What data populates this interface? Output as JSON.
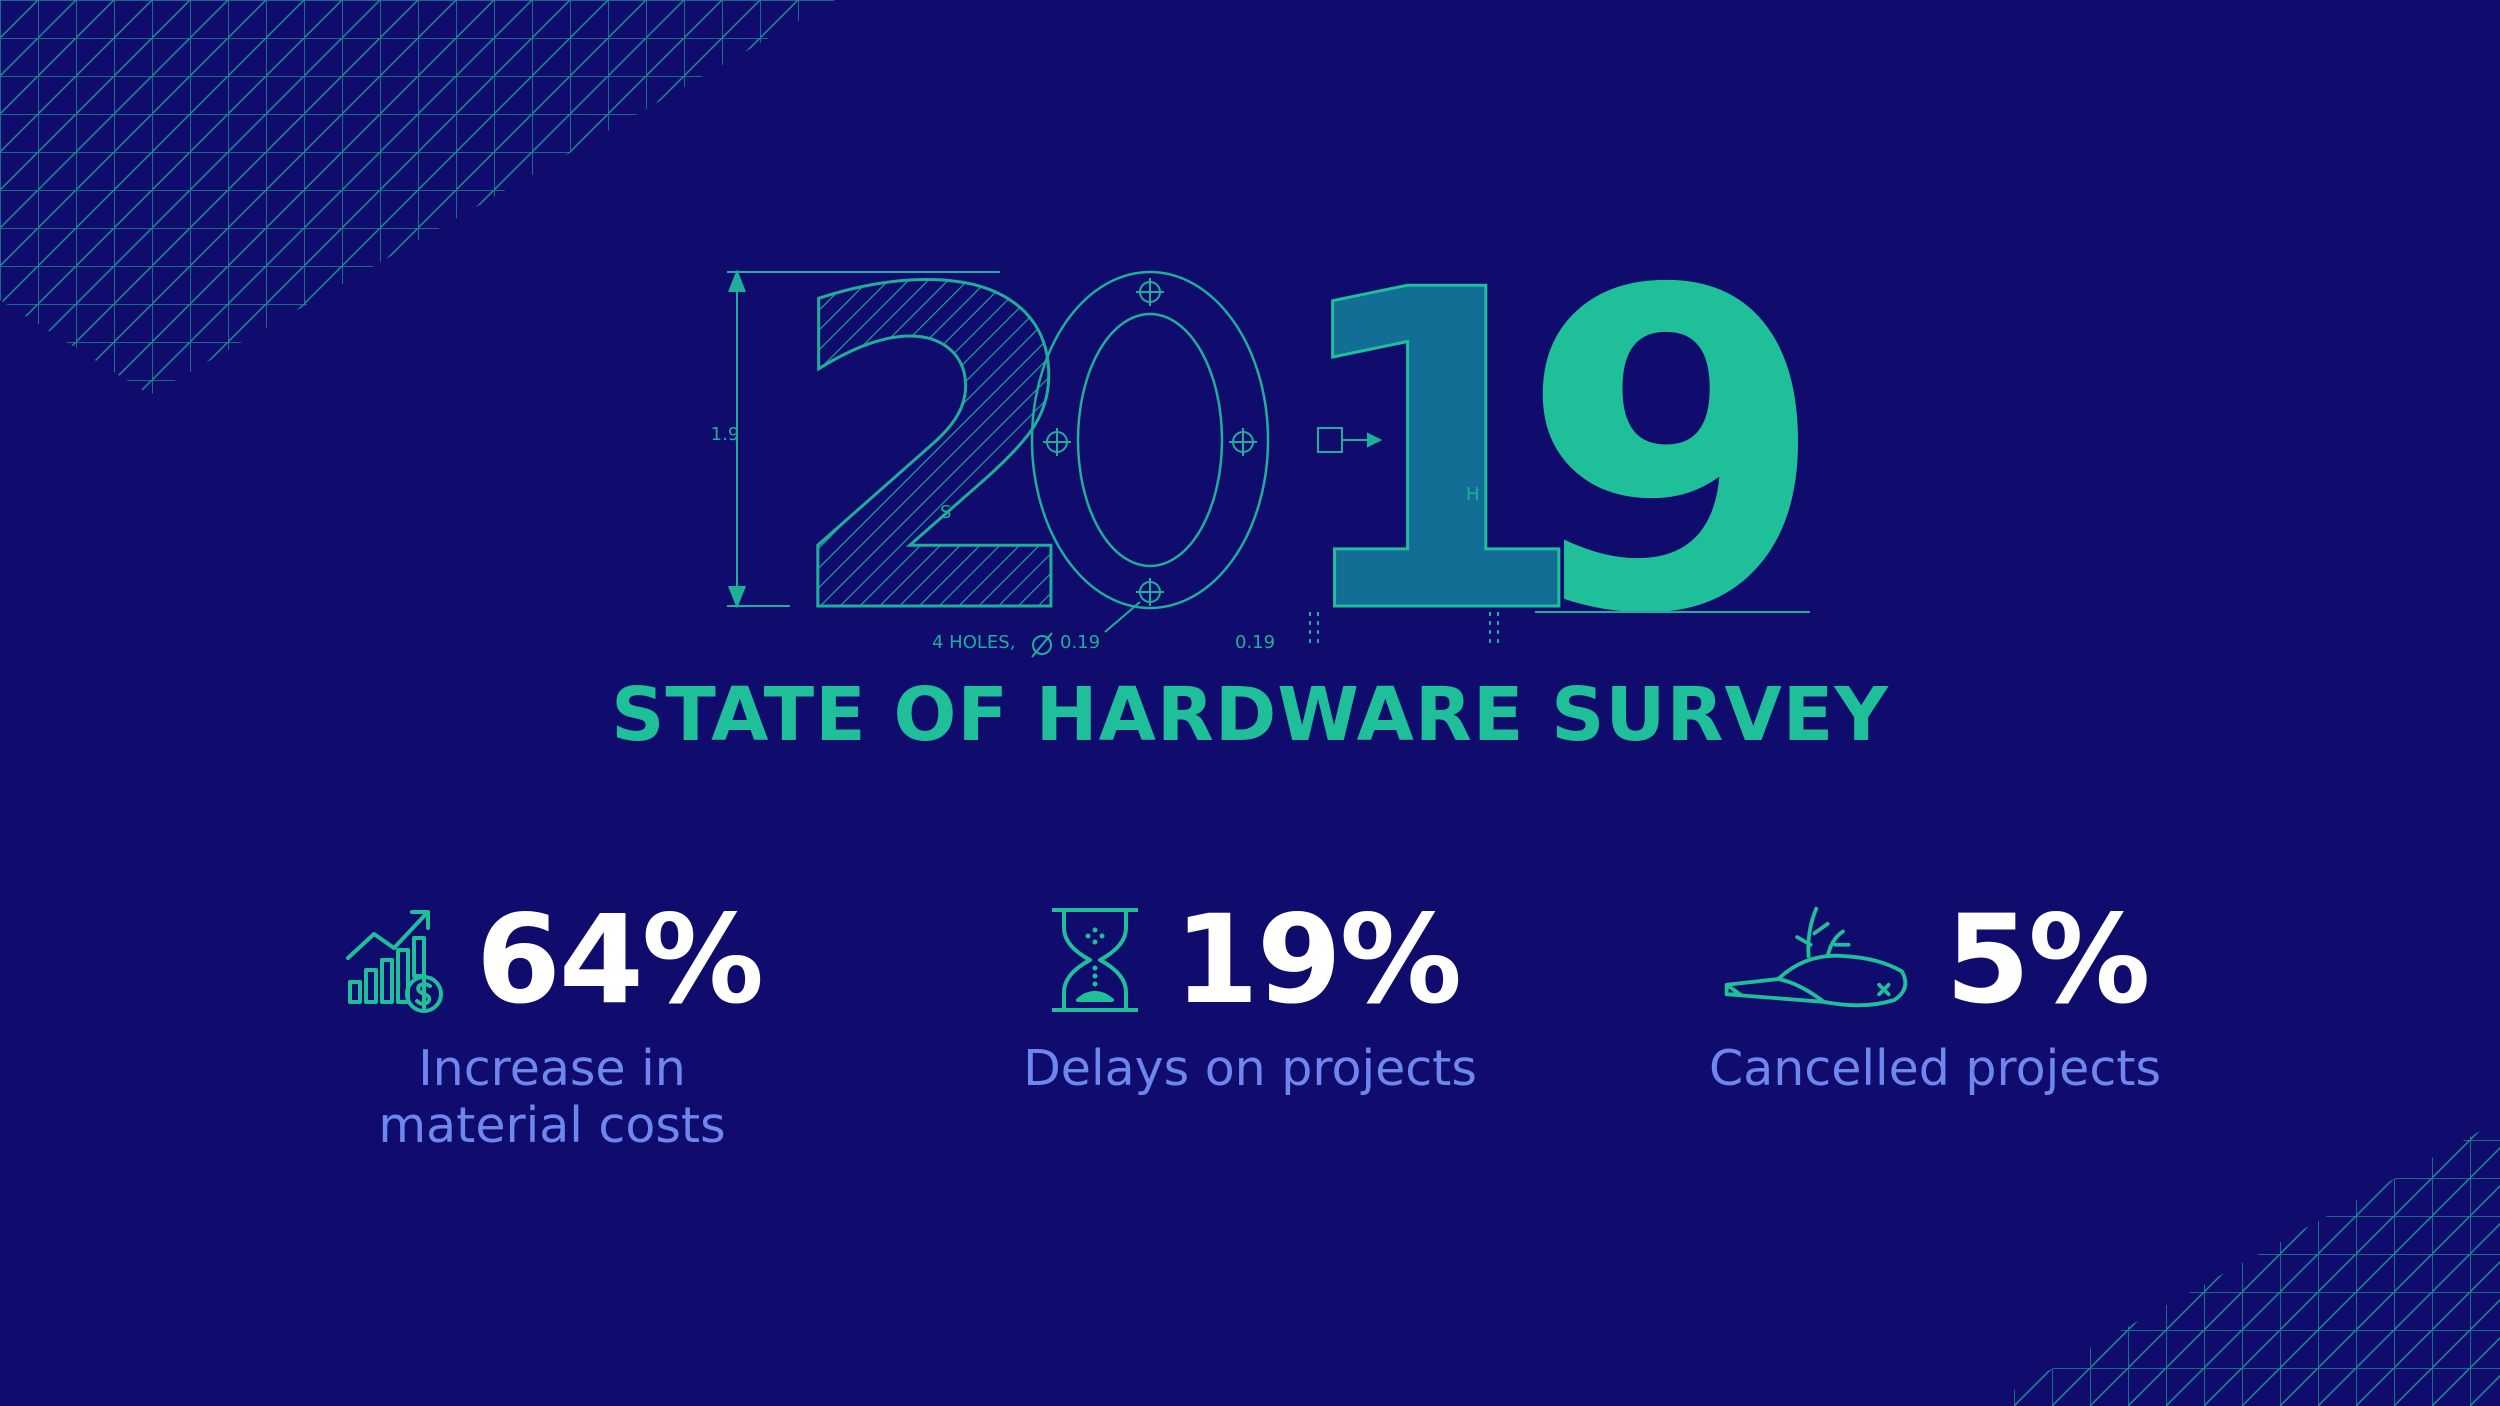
{
  "hero": {
    "year_digits": [
      "2",
      "0",
      "1",
      "9"
    ],
    "dim_height": "1.9",
    "label_s": "S",
    "label_h": "H",
    "holes_note": "4 HOLES,",
    "holes_size": "0.19",
    "offset_note": "0.19"
  },
  "title": "STATE OF HARDWARE SURVEY",
  "stats": [
    {
      "icon": "rising-costs-chart-icon",
      "value": "64%",
      "label": "Increase in material costs"
    },
    {
      "icon": "hourglass-icon",
      "value": "19%",
      "label": "Delays on projects"
    },
    {
      "icon": "dead-bird-icon",
      "value": "5%",
      "label": "Cancelled projects"
    }
  ],
  "colors": {
    "background": "#0f0c6e",
    "accent": "#1fbf9a",
    "value_text": "#ffffff",
    "label_text": "#6e87ee"
  }
}
